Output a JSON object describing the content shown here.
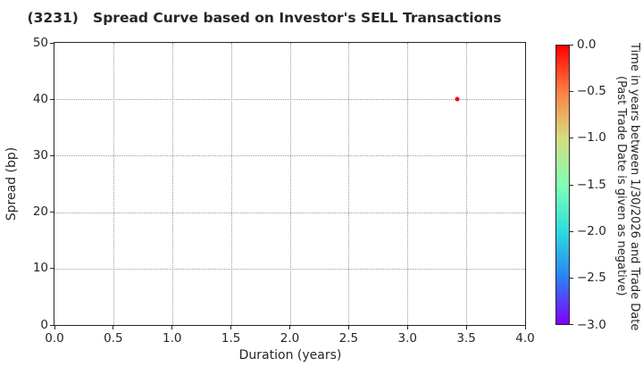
{
  "chart_data": {
    "type": "scatter",
    "title": "(3231)   Spread Curve based on Investor's SELL Transactions",
    "xlabel": "Duration (years)",
    "ylabel": "Spread (bp)",
    "xlim": [
      0.0,
      4.0
    ],
    "ylim": [
      0,
      50
    ],
    "grid": true,
    "xticks": [
      "0.0",
      "0.5",
      "1.0",
      "1.5",
      "2.0",
      "2.5",
      "3.0",
      "3.5",
      "4.0"
    ],
    "yticks": [
      "0",
      "10",
      "20",
      "30",
      "40",
      "50"
    ],
    "points": [
      {
        "x": 3.42,
        "y": 40.0,
        "value": 0.0,
        "color": "#ff0000"
      }
    ],
    "colorbar": {
      "label_line1": "Time in years between 1/30/2026 and Trade Date",
      "label_line2": "(Past Trade Date is given as negative)",
      "max": 0.0,
      "min": -3.0,
      "ticks": [
        "0.0",
        "−0.5",
        "−1.0",
        "−1.5",
        "−2.0",
        "−2.5",
        "−3.0"
      ],
      "gradient_top_to_bottom": [
        "#ff0000",
        "#ff8042",
        "#d5dd80",
        "#80ffb4",
        "#2bdddd",
        "#2b80f6",
        "#8000ff"
      ]
    },
    "colors": {
      "axis": "#262626",
      "grid": "#999999",
      "background": "#ffffff"
    }
  }
}
